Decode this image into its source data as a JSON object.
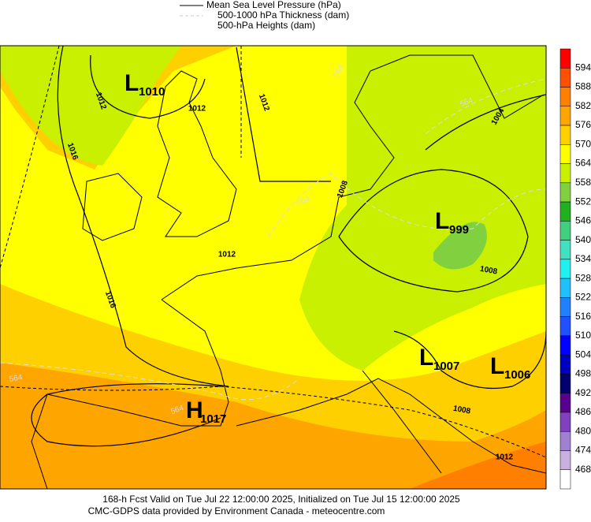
{
  "legend": [
    "Mean Sea Level Pressure (hPa)",
    "500-1000 hPa Thickness (dam)",
    "500-hPa Heights (dam)"
  ],
  "colorbar": {
    "labels": [
      594,
      588,
      582,
      576,
      570,
      564,
      558,
      552,
      546,
      540,
      534,
      528,
      522,
      516,
      510,
      504,
      498,
      492,
      486,
      480,
      474,
      468
    ],
    "colors": [
      "#ff0000",
      "#ff5000",
      "#ff8000",
      "#ffa500",
      "#ffd000",
      "#ffff00",
      "#c8f000",
      "#80d040",
      "#20b020",
      "#40d080",
      "#40e0c0",
      "#20f0f0",
      "#20c0ff",
      "#2080ff",
      "#2050ff",
      "#0000ff",
      "#0000c0",
      "#000070",
      "#5a0090",
      "#8040c0",
      "#a080d0",
      "#c8b0e0",
      "#ffffff"
    ]
  },
  "centers": [
    {
      "type": "L",
      "value": "1010"
    },
    {
      "type": "L",
      "value": "999"
    },
    {
      "type": "L",
      "value": "1007"
    },
    {
      "type": "L",
      "value": "1006"
    },
    {
      "type": "H",
      "value": "1017"
    }
  ],
  "contour_labels": [
    "1012",
    "1012",
    "1012",
    "1016",
    "1016",
    "1012",
    "1008",
    "1004",
    "1008",
    "1008",
    "1012",
    "564",
    "564",
    "564",
    "564",
    "564"
  ],
  "footer": [
    "168-h Fcst Valid on Tue Jul 22 12:00:00 2025, Initialized on Tue Jul 15 12:00:00 2025",
    "CMC-GDPS data provided by Environment Canada - meteocentre.com"
  ]
}
